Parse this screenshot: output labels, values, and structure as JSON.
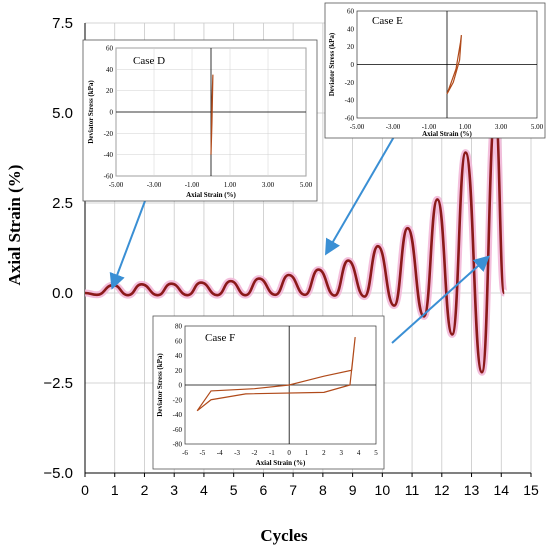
{
  "colors": {
    "series": "#8b1a1a",
    "highlight": "#f2b8d8",
    "arrow": "#3a8fd4",
    "inset_line": "#b04a1a"
  },
  "chart_data": [
    {
      "type": "line",
      "title": "",
      "xlabel": "Cycles",
      "ylabel": "Axial Strain (%)",
      "xlim": [
        0,
        15
      ],
      "ylim": [
        -5.0,
        7.5
      ],
      "xticks": [
        "0",
        "1",
        "2",
        "3",
        "4",
        "5",
        "6",
        "7",
        "8",
        "9",
        "10",
        "11",
        "12",
        "13",
        "14",
        "15"
      ],
      "yticks": [
        "7.5",
        "5.0",
        "2.5",
        "0.0",
        "−2.5",
        "−5.0"
      ],
      "grid": true,
      "series": [
        {
          "peaks": [
            [
              0.95,
              0.22
            ],
            [
              1.9,
              0.24
            ],
            [
              2.9,
              0.26
            ],
            [
              3.9,
              0.29
            ],
            [
              4.9,
              0.33
            ],
            [
              5.85,
              0.4
            ],
            [
              6.85,
              0.5
            ],
            [
              7.85,
              0.65
            ],
            [
              8.85,
              0.9
            ],
            [
              9.85,
              1.3
            ],
            [
              10.85,
              1.8
            ],
            [
              11.85,
              2.6
            ],
            [
              12.8,
              3.9
            ],
            [
              13.8,
              5.0
            ]
          ],
          "troughs": [
            [
              0.4,
              -0.05
            ],
            [
              1.45,
              -0.06
            ],
            [
              2.45,
              -0.06
            ],
            [
              3.45,
              -0.06
            ],
            [
              4.45,
              -0.06
            ],
            [
              5.4,
              -0.06
            ],
            [
              6.4,
              -0.05
            ],
            [
              7.4,
              -0.05
            ],
            [
              8.4,
              -0.07
            ],
            [
              9.4,
              -0.1
            ],
            [
              10.4,
              -0.35
            ],
            [
              11.4,
              -0.65
            ],
            [
              12.35,
              -1.15
            ],
            [
              13.35,
              -2.2
            ]
          ],
          "end": [
            14.1,
            0.0
          ]
        }
      ]
    },
    {
      "type": "line",
      "case": "Case D",
      "xlabel": "Axial Strain (%)",
      "ylabel": "Deviator Stress (kPa)",
      "xlim": [
        -5,
        5
      ],
      "ylim": [
        -60,
        60
      ],
      "xticks": [
        "-5.00",
        "-3.00",
        "-1.00",
        "1.00",
        "3.00",
        "5.00"
      ],
      "yticks": [
        "60",
        "40",
        "20",
        "0",
        "-20",
        "-40",
        "-60"
      ],
      "series": [
        {
          "x": [
            0.0,
            0.05,
            0.1,
            0.05,
            0.0
          ],
          "y": [
            -40,
            -10,
            35,
            10,
            -40
          ]
        }
      ]
    },
    {
      "type": "line",
      "case": "Case E",
      "xlabel": "Axial Strain (%)",
      "ylabel": "Deviator Stress (kPa)",
      "xlim": [
        -5,
        5
      ],
      "ylim": [
        -60,
        60
      ],
      "xticks": [
        "-5.00",
        "-3.00",
        "-1.00",
        "1.00",
        "3.00",
        "5.00"
      ],
      "yticks": [
        "60",
        "40",
        "20",
        "0",
        "-20",
        "-40",
        "-60"
      ],
      "series": [
        {
          "x": [
            0.0,
            0.2,
            0.5,
            0.75,
            0.8,
            0.7,
            0.35,
            0.0
          ],
          "y": [
            -33,
            -22,
            -5,
            25,
            33,
            5,
            -20,
            -33
          ]
        }
      ]
    },
    {
      "type": "line",
      "case": "Case F",
      "xlabel": "Axial Strain (%)",
      "ylabel": "Deviator Stress (kPa)",
      "xlim": [
        -6,
        5
      ],
      "ylim": [
        -80,
        80
      ],
      "xticks": [
        "-6",
        "-5",
        "-4",
        "-3",
        "-2",
        "-1",
        "0",
        "1",
        "2",
        "3",
        "4",
        "5"
      ],
      "yticks": [
        "80",
        "60",
        "40",
        "20",
        "0",
        "-20",
        "-40",
        "-60",
        "-80"
      ],
      "series": [
        {
          "x": [
            -5.3,
            -4.5,
            -2.5,
            2.0,
            3.5,
            3.8,
            3.6,
            2.0,
            0.0,
            -2.0,
            -4.5,
            -5.3
          ],
          "y": [
            -35,
            -20,
            -12,
            -10,
            0,
            65,
            20,
            12,
            0,
            -5,
            -8,
            -35
          ]
        }
      ]
    }
  ]
}
